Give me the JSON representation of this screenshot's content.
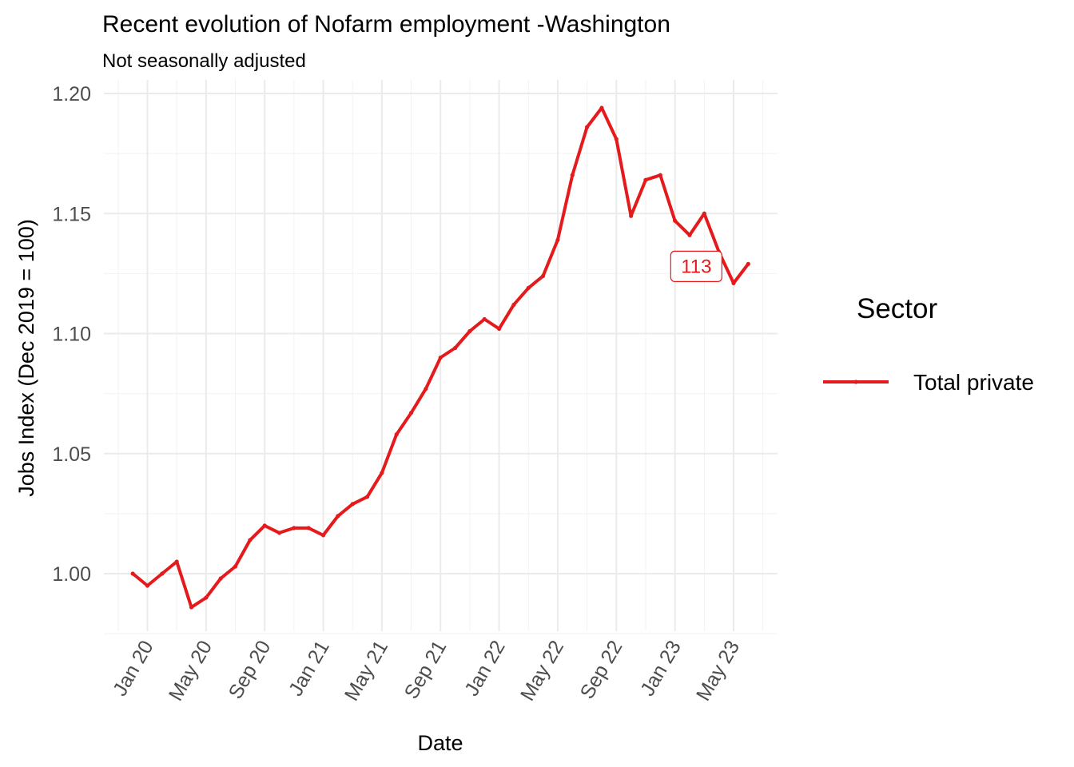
{
  "chart_data": {
    "type": "line",
    "title": "Recent evolution of Nofarm employment -Washington",
    "subtitle": "Not seasonally adjusted",
    "xlabel": "Date",
    "ylabel": "Jobs Index (Dec 2019 = 100)",
    "ylim": [
      0.977,
      1.2
    ],
    "y_ticks": [
      1.0,
      1.05,
      1.1,
      1.15,
      1.2
    ],
    "y_tick_labels": [
      "1.00",
      "1.05",
      "1.10",
      "1.15",
      "1.20"
    ],
    "x_ticks": [
      "2020-01",
      "2020-05",
      "2020-09",
      "2021-01",
      "2021-05",
      "2021-09",
      "2022-01",
      "2022-05",
      "2022-09",
      "2023-01",
      "2023-05"
    ],
    "x_tick_labels": [
      "Jan 20",
      "May 20",
      "Sep 20",
      "Jan 21",
      "May 21",
      "Sep 21",
      "Jan 22",
      "May 22",
      "Sep 22",
      "Jan 23",
      "May 23"
    ],
    "grid": true,
    "legend": {
      "title": "Sector",
      "position": "right"
    },
    "series": [
      {
        "name": "Total private",
        "color": "#e41a1c",
        "x": [
          "2019-12",
          "2020-01",
          "2020-02",
          "2020-03",
          "2020-04",
          "2020-05",
          "2020-06",
          "2020-07",
          "2020-08",
          "2020-09",
          "2020-10",
          "2020-11",
          "2020-12",
          "2021-01",
          "2021-02",
          "2021-03",
          "2021-04",
          "2021-05",
          "2021-06",
          "2021-07",
          "2021-08",
          "2021-09",
          "2021-10",
          "2021-11",
          "2021-12",
          "2022-01",
          "2022-02",
          "2022-03",
          "2022-04",
          "2022-05",
          "2022-06",
          "2022-07",
          "2022-08",
          "2022-09",
          "2022-10",
          "2022-11",
          "2022-12",
          "2023-01",
          "2023-02",
          "2023-03",
          "2023-04",
          "2023-05",
          "2023-06"
        ],
        "values": [
          1.0,
          0.995,
          1.0,
          1.005,
          0.986,
          0.99,
          0.998,
          1.003,
          1.014,
          1.02,
          1.017,
          1.019,
          1.019,
          1.016,
          1.024,
          1.029,
          1.032,
          1.042,
          1.058,
          1.067,
          1.077,
          1.09,
          1.094,
          1.101,
          1.106,
          1.102,
          1.112,
          1.119,
          1.124,
          1.139,
          1.166,
          1.186,
          1.194,
          1.181,
          1.149,
          1.164,
          1.166,
          1.147,
          1.141,
          1.15,
          1.134,
          1.121,
          1.129
        ]
      }
    ],
    "annotations": [
      {
        "x": "2023-03",
        "y": 1.129,
        "text": "113"
      }
    ]
  }
}
